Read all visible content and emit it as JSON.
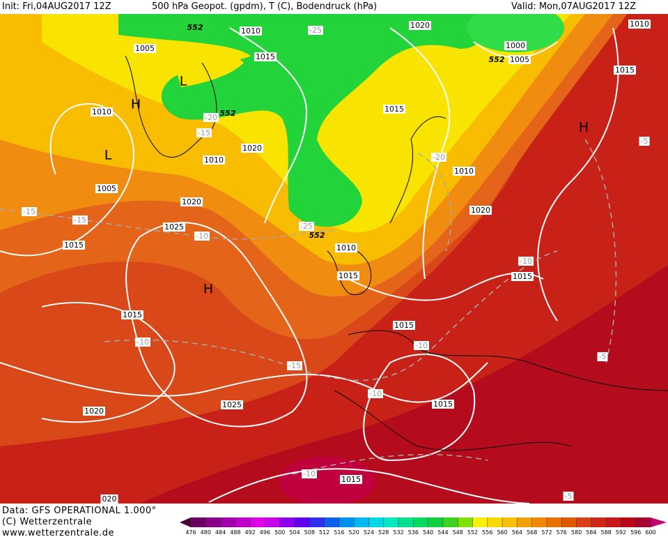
{
  "header": {
    "init": "Init: Fri,04AUG2017 12Z",
    "title": "500 hPa Geopot. (gpdm), T (C), Bodendruck (hPa)",
    "valid": "Valid: Mon,07AUG2017 12Z"
  },
  "footer": {
    "source": "Data: GFS OPERATIONAL 1.000°",
    "copyright": "(C) Wetterzentrale",
    "url": "www.wetterzentrale.de"
  },
  "legend": {
    "levels": [
      476,
      480,
      484,
      488,
      492,
      496,
      500,
      504,
      508,
      512,
      516,
      520,
      524,
      528,
      532,
      536,
      540,
      544,
      548,
      552,
      556,
      560,
      564,
      568,
      572,
      576,
      580,
      584,
      588,
      592,
      596,
      600
    ]
  },
  "map": {
    "isobar_labels": [
      "1010",
      "1015",
      "1020",
      "1000",
      "1005",
      "1010",
      "1015",
      "1005",
      "1010",
      "1015",
      "1020",
      "1010",
      "1010",
      "1005",
      "1020",
      "1020",
      "1025",
      "1015",
      "1010",
      "1015",
      "1015",
      "1015",
      "1015",
      "1020",
      "1025",
      "1015",
      "1015",
      "020"
    ],
    "temperature_labels": [
      "-25",
      "-20",
      "-25",
      "-20",
      "-15",
      "-15",
      "-15",
      "-10",
      "-10",
      "-10",
      "-10",
      "-15",
      "-10",
      "-10",
      "-5",
      "-5",
      "-5"
    ],
    "contour_labels": [
      "552",
      "552",
      "552",
      "552"
    ],
    "pressure_centers": [
      "L",
      "H",
      "L",
      "H",
      "H"
    ]
  }
}
